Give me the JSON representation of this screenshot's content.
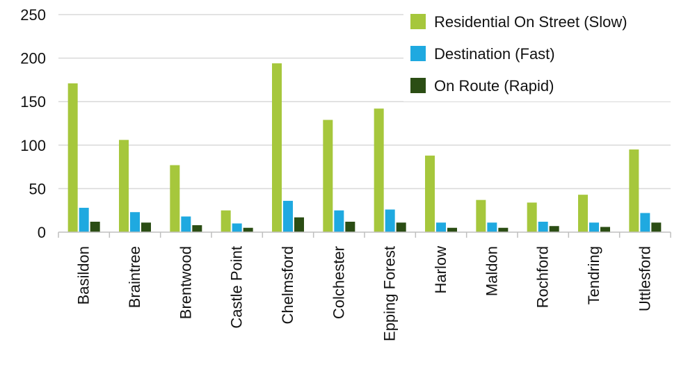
{
  "chart_data": {
    "type": "bar",
    "title": "",
    "xlabel": "",
    "ylabel": "",
    "categories": [
      "Basildon",
      "Braintree",
      "Brentwood",
      "Castle Point",
      "Chelmsford",
      "Colchester",
      "Epping Forest",
      "Harlow",
      "Maldon",
      "Rochford",
      "Tendring",
      "Uttlesford"
    ],
    "series": [
      {
        "name": "Residential On Street (Slow)",
        "color": "#a6c73c",
        "values": [
          171,
          106,
          77,
          25,
          194,
          129,
          142,
          88,
          37,
          34,
          43,
          95
        ]
      },
      {
        "name": "Destination (Fast)",
        "color": "#1fa9e0",
        "values": [
          28,
          23,
          18,
          10,
          36,
          25,
          26,
          11,
          11,
          12,
          11,
          22
        ]
      },
      {
        "name": "On Route (Rapid)",
        "color": "#2b4d14",
        "values": [
          12,
          11,
          8,
          5,
          17,
          12,
          11,
          5,
          5,
          7,
          6,
          11
        ]
      }
    ],
    "ylim": [
      0,
      250
    ],
    "yticks": [
      0,
      50,
      100,
      150,
      200,
      250
    ],
    "grid": true,
    "legend_position": "top-right"
  }
}
